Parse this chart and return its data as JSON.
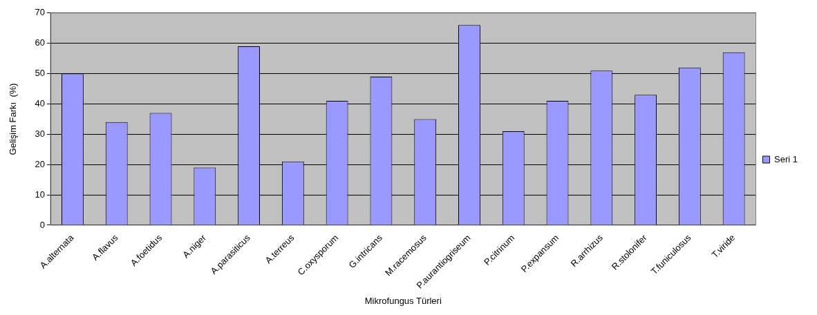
{
  "chart_data": {
    "type": "bar",
    "xlabel": "Mikrofungus Türleri",
    "ylabel": "Gelişim Farkı  (%)",
    "categories": [
      "A.alternata",
      "A.flavus",
      "A.foetidus",
      "A.niger",
      "A.parasiticus",
      "A.terreus",
      "C.oxysporum",
      "G.intricans",
      "M.racemosus",
      "P.aurantiogriseum",
      "P.citrinum",
      "P.expansum",
      "R.arrhizus",
      "R.stolonifer",
      "T.funiculosus",
      "T.viride"
    ],
    "series": [
      {
        "name": "Seri 1",
        "color": "#9999ff",
        "values": [
          50,
          34,
          37,
          19,
          59,
          21,
          41,
          49,
          35,
          66,
          31,
          41,
          51,
          43,
          52,
          57
        ]
      }
    ],
    "ylim": [
      0,
      70
    ],
    "yticks": [
      0,
      10,
      20,
      30,
      40,
      50,
      60,
      70
    ],
    "grid": "y",
    "legend": "right"
  }
}
